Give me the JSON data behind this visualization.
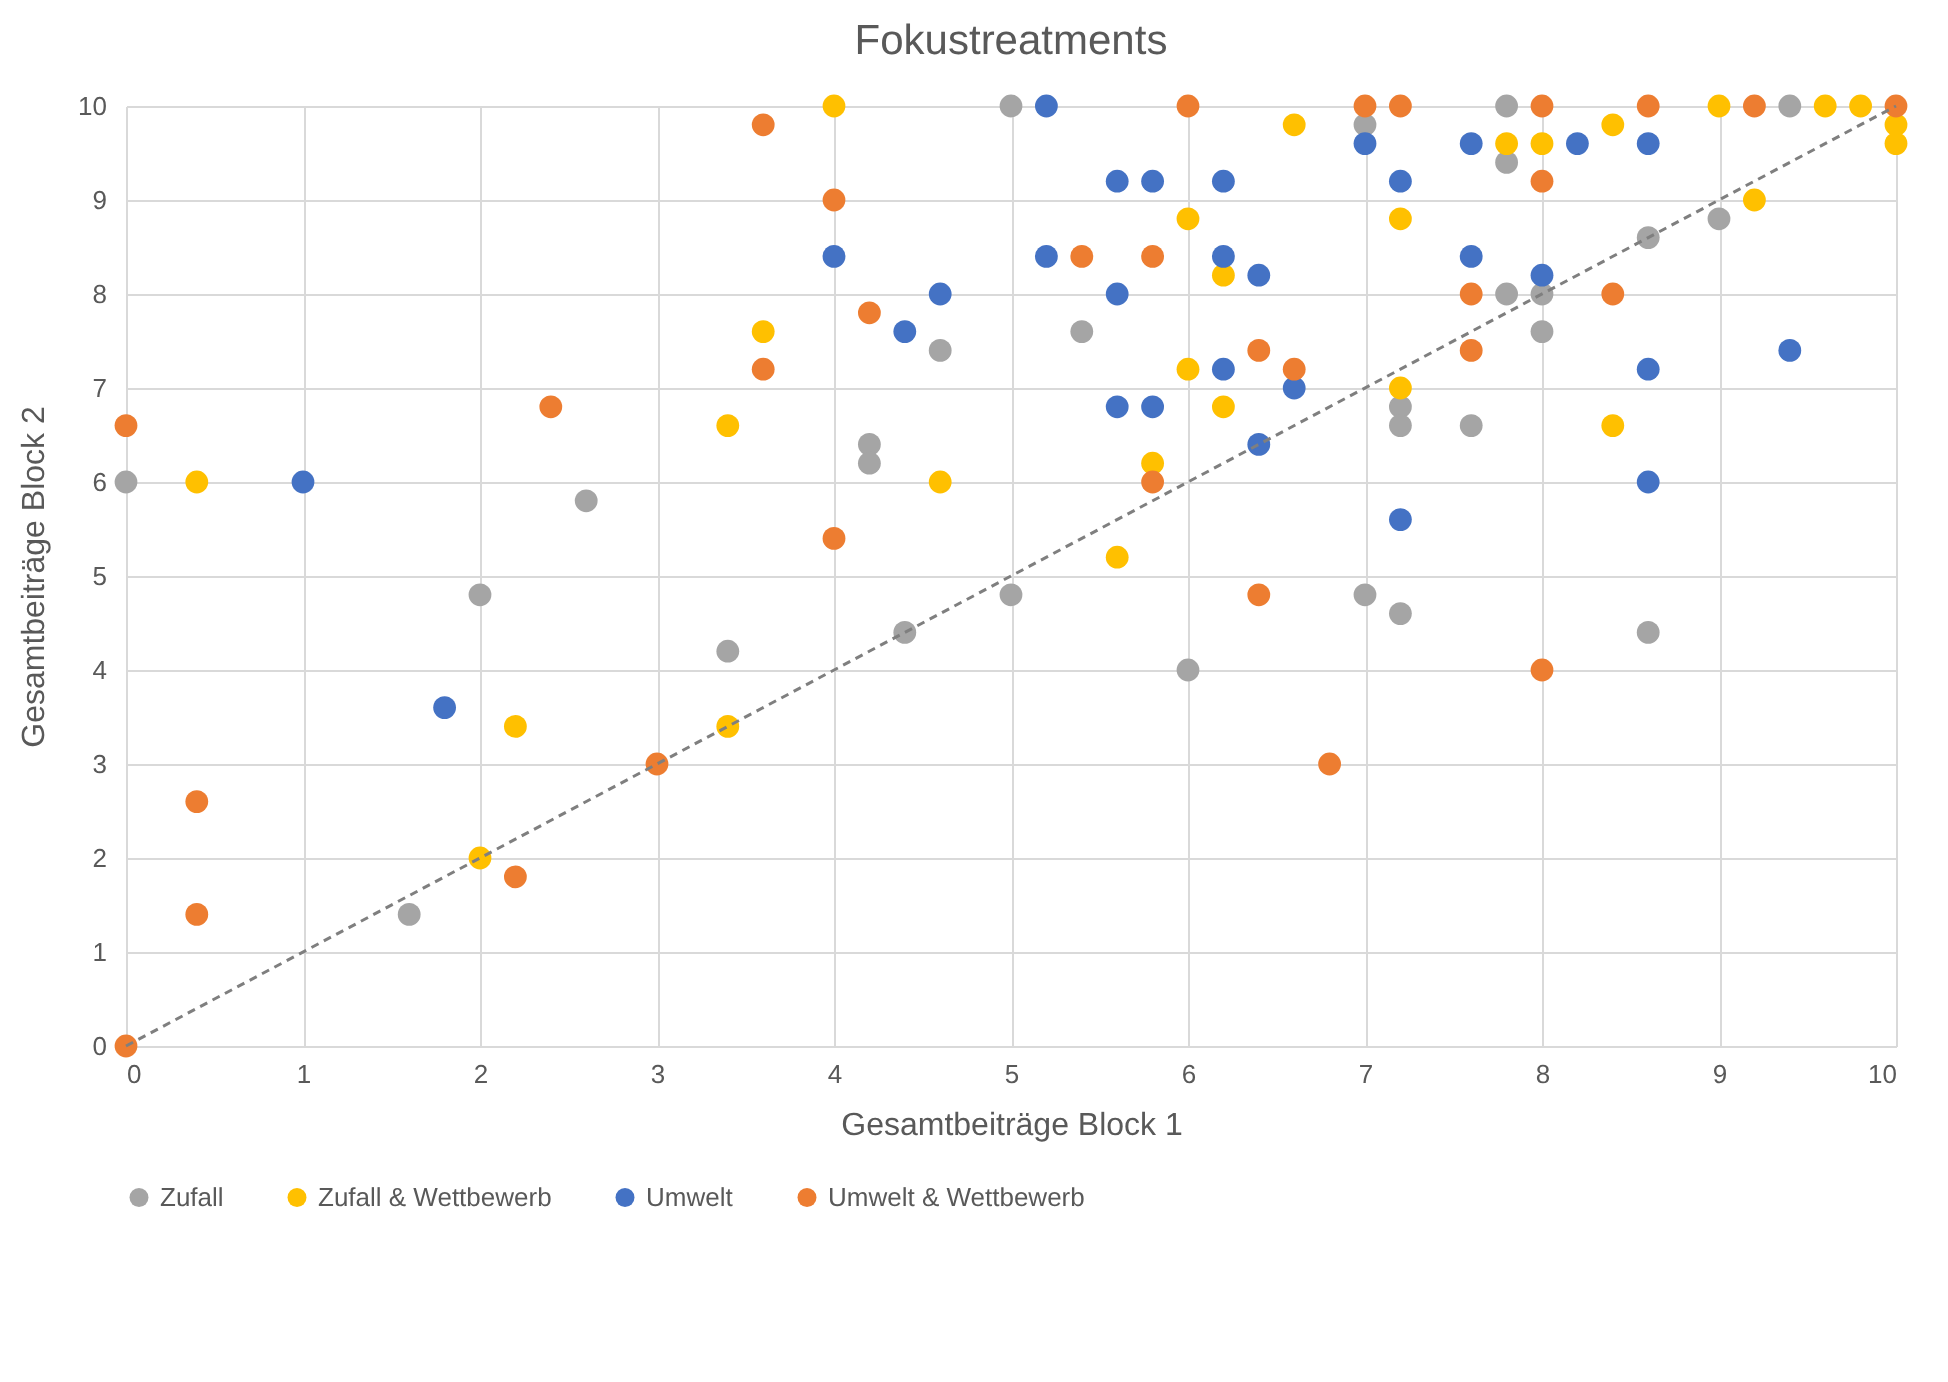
{
  "chart_data": {
    "type": "scatter",
    "title": "Fokustreatments",
    "xlabel": "Gesamtbeiträge Block 1",
    "ylabel": "Gesamtbeiträge Block 2",
    "xlim": [
      0,
      10
    ],
    "xticks": [
      0,
      1,
      2,
      3,
      4,
      5,
      6,
      7,
      8,
      9,
      10
    ],
    "ylim": [
      0,
      10
    ],
    "yticks": [
      0,
      1,
      2,
      3,
      4,
      5,
      6,
      7,
      8,
      9,
      10
    ],
    "grid": true,
    "legend": "bottom",
    "marker": "circle",
    "series": [
      {
        "name": "Zufall",
        "color": "#a5a5a5",
        "x": [
          0,
          1.6,
          2,
          2.6,
          3.4,
          4.2,
          4.2,
          4.4,
          4.6,
          5,
          5,
          5.4,
          6,
          7,
          7,
          7.2,
          7.2,
          7.2,
          7.6,
          7.8,
          7.8,
          7.8,
          8,
          8,
          8.6,
          8.6,
          9,
          9.4
        ],
        "values": [
          6,
          1.4,
          4.8,
          5.8,
          4.2,
          6.4,
          6.2,
          4.4,
          7.4,
          10,
          4.8,
          7.6,
          4,
          9.8,
          4.8,
          6.8,
          6.6,
          4.6,
          6.6,
          10,
          9.4,
          8,
          8,
          7.6,
          8.6,
          4.4,
          8.8,
          10
        ]
      },
      {
        "name": "Zufall & Wettbewerb",
        "color": "#ffc000",
        "x": [
          0.4,
          2,
          2.2,
          3.4,
          3.4,
          3.6,
          4,
          4.6,
          5.6,
          5.8,
          6,
          6,
          6.2,
          6.2,
          6.6,
          7.2,
          7.2,
          7.8,
          8,
          8.4,
          8.4,
          9,
          9.2,
          9.6,
          9.8,
          10,
          10
        ],
        "values": [
          6,
          2,
          3.4,
          6.6,
          3.4,
          7.6,
          10,
          6,
          5.2,
          6.2,
          8.8,
          7.2,
          8.2,
          6.8,
          9.8,
          8.8,
          7,
          9.6,
          9.6,
          9.8,
          6.6,
          10,
          9,
          10,
          10,
          9.8,
          9.6
        ]
      },
      {
        "name": "Umwelt",
        "color": "#4472c4",
        "x": [
          1,
          1.8,
          4,
          4.4,
          4.6,
          5.2,
          5.2,
          5.6,
          5.6,
          5.6,
          5.8,
          5.8,
          6.2,
          6.2,
          6.2,
          6.4,
          6.4,
          6.6,
          7,
          7.2,
          7.2,
          7.6,
          7.6,
          8,
          8.2,
          8.6,
          8.6,
          8.6,
          9.4
        ],
        "values": [
          6,
          3.6,
          8.4,
          7.6,
          8,
          10,
          8.4,
          9.2,
          8,
          6.8,
          9.2,
          6.8,
          9.2,
          8.4,
          7.2,
          8.2,
          6.4,
          7,
          9.6,
          9.2,
          5.6,
          9.6,
          8.4,
          8.2,
          9.6,
          9.6,
          7.2,
          6,
          7.4
        ]
      },
      {
        "name": "Umwelt & Wettbewerb",
        "color": "#ed7d31",
        "x": [
          0,
          0,
          0.4,
          0.4,
          2.2,
          2.4,
          3,
          3.6,
          3.6,
          4,
          4,
          4.2,
          5.4,
          5.8,
          5.8,
          6,
          6.4,
          6.4,
          6.6,
          6.8,
          7,
          7.2,
          7.6,
          7.6,
          8,
          8,
          8,
          8.4,
          8.6,
          9.2,
          10
        ],
        "values": [
          6.6,
          0,
          2.6,
          1.4,
          1.8,
          6.8,
          3,
          9.8,
          7.2,
          9,
          5.4,
          7.8,
          8.4,
          8.4,
          6,
          10,
          7.4,
          4.8,
          7.2,
          3,
          10,
          10,
          8,
          7.4,
          10,
          9.2,
          4,
          8,
          10,
          10,
          10
        ]
      },
      {
        "type": "line",
        "color": "#7f7f7f",
        "line_style": "dashed",
        "marker": "none",
        "x": [
          0,
          10
        ],
        "values": [
          0,
          10
        ]
      }
    ]
  }
}
